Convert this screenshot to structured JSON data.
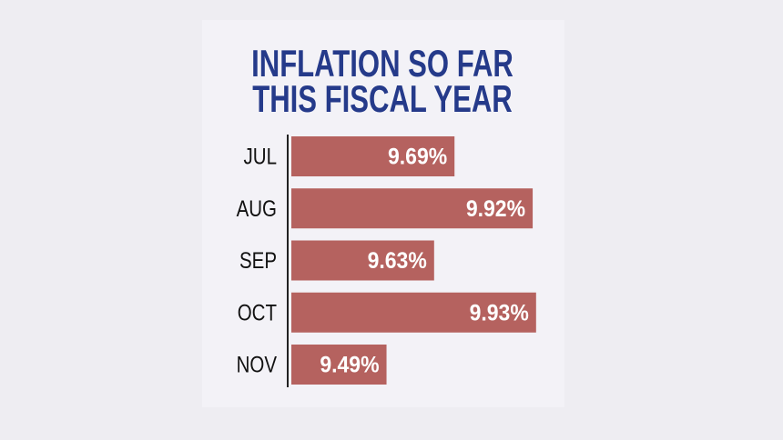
{
  "chart_data": {
    "type": "barh",
    "title": "INFLATION SO FAR THIS FISCAL YEAR",
    "categories": [
      "JUL",
      "AUG",
      "SEP",
      "OCT",
      "NOV"
    ],
    "values": [
      9.69,
      9.92,
      9.63,
      9.93,
      9.49
    ],
    "value_labels": [
      "9.69%",
      "9.92%",
      "9.63%",
      "9.93%",
      "9.49%"
    ],
    "color": "#b5625f",
    "xlim": [
      9.21,
      9.96
    ]
  }
}
